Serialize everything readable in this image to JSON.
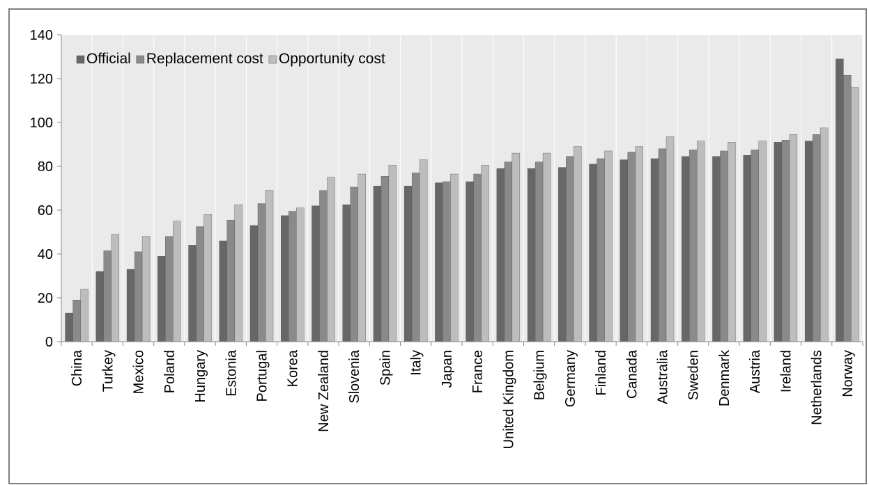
{
  "chart_data": {
    "type": "bar",
    "title": "",
    "xlabel": "",
    "ylabel": "",
    "ylim": [
      0,
      140
    ],
    "yticks": [
      0,
      20,
      40,
      60,
      80,
      100,
      120,
      140
    ],
    "grid": "vertical",
    "legend_position": "top-left",
    "categories": [
      "China",
      "Turkey",
      "Mexico",
      "Poland",
      "Hungary",
      "Estonia",
      "Portugal",
      "Korea",
      "New Zealand",
      "Slovenia",
      "Spain",
      "Italy",
      "Japan",
      "France",
      "United Kingdom",
      "Belgium",
      "Germany",
      "Finland",
      "Canada",
      "Australia",
      "Sweden",
      "Denmark",
      "Austria",
      "Ireland",
      "Netherlands",
      "Norway"
    ],
    "series": [
      {
        "name": "Official",
        "color": "#676767",
        "values": [
          13,
          32,
          33,
          39,
          44,
          46,
          53,
          57.5,
          62,
          62.5,
          71,
          71,
          72.5,
          73,
          79,
          79,
          79.5,
          81,
          83,
          83.5,
          84.5,
          84.5,
          85,
          91,
          91.5,
          129
        ]
      },
      {
        "name": "Replacement cost",
        "color": "#8a8a8a",
        "values": [
          19,
          41.5,
          41,
          48,
          52.5,
          55.5,
          63,
          59.5,
          69,
          70.5,
          75.5,
          77,
          73,
          76.5,
          82,
          82,
          84.5,
          83.5,
          86.5,
          88,
          87.5,
          87,
          87.5,
          92,
          94.5,
          121.5
        ]
      },
      {
        "name": "Opportunity cost",
        "color": "#bdbdbd",
        "values": [
          24,
          49,
          48,
          55,
          58,
          62.5,
          69,
          61,
          75,
          76.5,
          80.5,
          83,
          76.5,
          80.5,
          86,
          86,
          89,
          87,
          89,
          93.5,
          91.5,
          91,
          91.5,
          94.5,
          97.5,
          116
        ]
      }
    ]
  }
}
